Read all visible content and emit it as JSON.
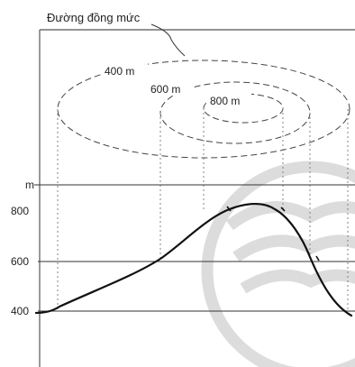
{
  "title": "Đường đồng mức",
  "contours": [
    {
      "label": "400 m",
      "elevation": 400
    },
    {
      "label": "600 m",
      "elevation": 600
    },
    {
      "label": "800 m",
      "elevation": 800
    }
  ],
  "profile": {
    "unit_label": "m",
    "ticks": [
      {
        "label": "800",
        "value": 800
      },
      {
        "label": "600",
        "value": 600
      },
      {
        "label": "400",
        "value": 400
      }
    ]
  }
}
